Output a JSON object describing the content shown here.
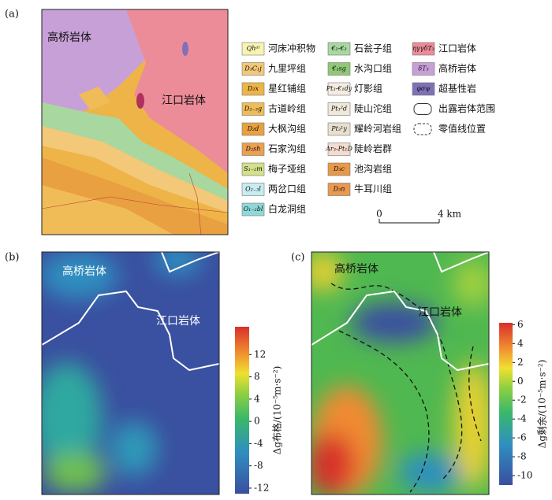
{
  "panel_a": {
    "label": "(a)",
    "place_names": [
      "高桥岩体",
      "江口岩体"
    ],
    "legend_columns": [
      [
        {
          "code": "Qhᵃˡ",
          "name": "河床冲积物",
          "color": "#f7f3b0"
        },
        {
          "code": "D₃C₁j",
          "name": "九里坪组",
          "color": "#f3c878"
        },
        {
          "code": "D₂x",
          "name": "星红铺组",
          "color": "#eeb448"
        },
        {
          "code": "D₂₋₃g",
          "name": "古道岭组",
          "color": "#f0bc58"
        },
        {
          "code": "D₂d",
          "name": "大枫沟组",
          "color": "#e8a040"
        },
        {
          "code": "D₂sh",
          "name": "石家沟组",
          "color": "#eca050"
        },
        {
          "code": "S₁₋₂m",
          "name": "梅子垭组",
          "color": "#d4e08a"
        },
        {
          "code": "O₂₋₃l",
          "name": "两岔口组",
          "color": "#c8ecf0"
        },
        {
          "code": "O₁₋₂bl",
          "name": "白龙洞组",
          "color": "#8fd8d8"
        }
      ],
      [
        {
          "code": "€₂-€₃",
          "name": "石瓮子组",
          "color": "#a8d8a0"
        },
        {
          "code": "€₁sg",
          "name": "水沟口组",
          "color": "#90c878"
        },
        {
          "code": "Pt₃-€₁dy",
          "name": "灯影组",
          "color": "#f4ece0"
        },
        {
          "code": "Pt₃²d",
          "name": "陡山沱组",
          "color": "#f0e8d8"
        },
        {
          "code": "Pt₃¹y",
          "name": "耀岭河岩组",
          "color": "#e8e0cc"
        },
        {
          "code": "Ar₃-Pt₁D",
          "name": "陡岭岩群",
          "color": "#f4dcd0"
        },
        {
          "code": "D₃c",
          "name": "池沟岩组",
          "color": "#e89848"
        },
        {
          "code": "D₃n",
          "name": "牛耳川组",
          "color": "#e89850"
        }
      ],
      [
        {
          "code": "ηγγδT₃",
          "name": "江口岩体",
          "color": "#ec8c98"
        },
        {
          "code": "δT₃",
          "name": "高桥岩体",
          "color": "#c8a0d8"
        },
        {
          "code": "φσψ",
          "name": "超基性岩",
          "color": "#8070b8"
        },
        {
          "name": "出露岩体范围",
          "style": "solid-outline"
        },
        {
          "name": "零值线位置",
          "style": "dashed-outline"
        }
      ]
    ],
    "scale": {
      "start": "0",
      "end": "4 km"
    }
  },
  "panel_b": {
    "label": "(b)",
    "place_names": [
      "高桥岩体",
      "江口岩体"
    ],
    "colorbar": {
      "label": "Δg布格/(10⁻⁵m·s⁻²)",
      "ylim": [
        -13,
        17
      ],
      "yticks": [
        12,
        8,
        4,
        0,
        -4,
        -8,
        -12
      ]
    }
  },
  "panel_c": {
    "label": "(c)",
    "place_names": [
      "高桥岩体",
      "江口岩体"
    ],
    "colorbar": {
      "label": "Δg剩余/(10⁻⁵m·s⁻²)",
      "ylim": [
        -11,
        6.2
      ],
      "yticks": [
        6,
        4,
        2,
        0,
        -2,
        -4,
        -6,
        -8,
        -10
      ]
    }
  }
}
